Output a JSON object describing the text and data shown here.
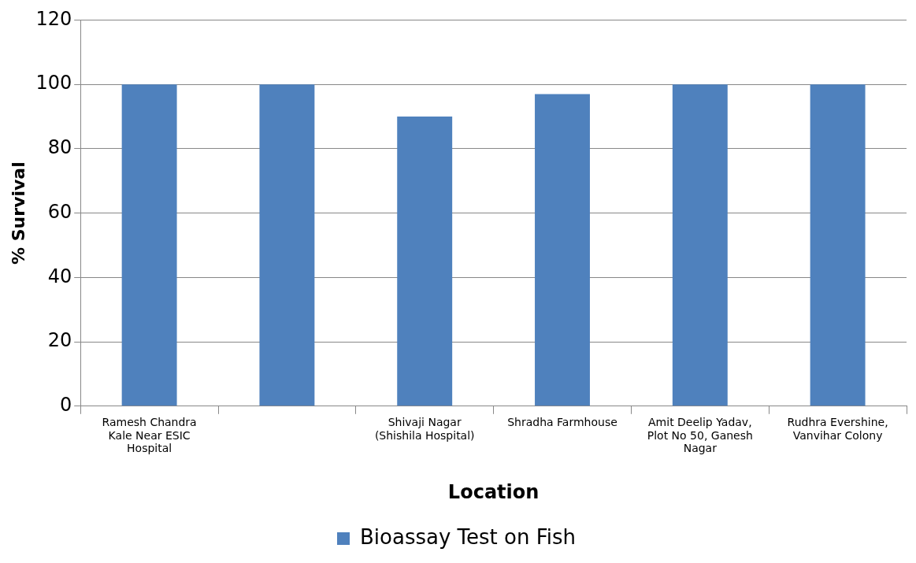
{
  "chart_data": {
    "type": "bar",
    "xlabel": "Location",
    "ylabel": "% Survival",
    "categories": [
      "Ramesh Chandra Kale Near ESIC Hospital",
      null,
      "Shivaji Nagar (Shishila Hospital)",
      "Shradha Farmhouse",
      "Amit Deelip Yadav, Plot No 50, Ganesh Nagar",
      "Rudhra Evershine, Vanvihar Colony"
    ],
    "series": [
      {
        "name": "Bioassay Test on Fish",
        "color": "#4f81bd",
        "values": [
          100,
          100,
          90,
          97,
          100,
          100
        ]
      }
    ],
    "ylim": [
      0,
      120
    ],
    "yticks": [
      0,
      20,
      40,
      60,
      80,
      100,
      120
    ],
    "grid": "y",
    "legend": "bottom"
  }
}
